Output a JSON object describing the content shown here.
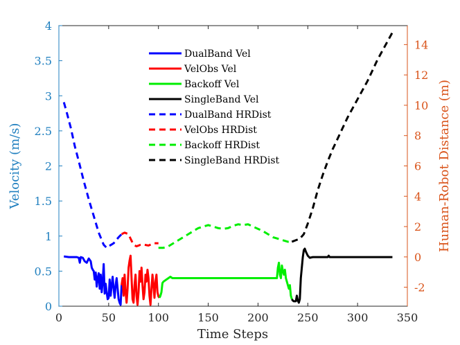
{
  "chart_data": {
    "type": "line",
    "xlabel": "Time Steps",
    "ylabel_left": "Velocity (m/s)",
    "ylabel_right": "Human-Robot Distance (m)",
    "xlim": [
      0,
      350
    ],
    "ylim_left": [
      0,
      4
    ],
    "ylim_right": [
      -3.25,
      15.25
    ],
    "x_ticks": [
      0,
      50,
      100,
      150,
      200,
      250,
      300,
      350
    ],
    "y_left_ticks": [
      0,
      0.5,
      1,
      1.5,
      2,
      2.5,
      3,
      3.5,
      4
    ],
    "y_left_tick_labels": [
      "0",
      "0.5",
      "1",
      "1.5",
      "2",
      "2.5",
      "3",
      "3.5",
      "4"
    ],
    "y_right_ticks": [
      -2,
      0,
      2,
      4,
      6,
      8,
      10,
      12,
      14
    ],
    "y_right_tick_labels": [
      "-2",
      "0",
      "2",
      "4",
      "6",
      "8",
      "10",
      "12",
      "14"
    ],
    "grid": false,
    "legend_position": "top-center",
    "colors": {
      "left_axis": "#1f7fbf",
      "right_axis": "#d95319"
    },
    "series": [
      {
        "name": "DualBand Vel",
        "color": "#0000ff",
        "style": "solid",
        "axis": "left",
        "points": [
          [
            5,
            0.71
          ],
          [
            10,
            0.7
          ],
          [
            15,
            0.7
          ],
          [
            18,
            0.7
          ],
          [
            20,
            0.69
          ],
          [
            21,
            0.62
          ],
          [
            22,
            0.7
          ],
          [
            24,
            0.69
          ],
          [
            26,
            0.64
          ],
          [
            28,
            0.62
          ],
          [
            30,
            0.68
          ],
          [
            32,
            0.64
          ],
          [
            33,
            0.55
          ],
          [
            34,
            0.52
          ],
          [
            35,
            0.5
          ],
          [
            36,
            0.38
          ],
          [
            37,
            0.48
          ],
          [
            38,
            0.28
          ],
          [
            39,
            0.4
          ],
          [
            40,
            0.47
          ],
          [
            41,
            0.25
          ],
          [
            42,
            0.45
          ],
          [
            43,
            0.2
          ],
          [
            44,
            0.35
          ],
          [
            45,
            0.6
          ],
          [
            46,
            0.18
          ],
          [
            47,
            0.32
          ],
          [
            48,
            0.2
          ],
          [
            49,
            0.1
          ],
          [
            50,
            0.12
          ],
          [
            51,
            0.38
          ],
          [
            52,
            0.15
          ],
          [
            53,
            0.3
          ],
          [
            54,
            0.42
          ],
          [
            55,
            0.25
          ],
          [
            56,
            0.12
          ],
          [
            57,
            0.3
          ],
          [
            58,
            0.4
          ],
          [
            59,
            0.25
          ],
          [
            60,
            0.1
          ],
          [
            61,
            0.05
          ],
          [
            62,
            0.02
          ],
          [
            63,
            0.3
          ]
        ]
      },
      {
        "name": "VelObs Vel",
        "color": "#ff0000",
        "style": "solid",
        "axis": "left",
        "points": [
          [
            63,
            0.3
          ],
          [
            64,
            0.4
          ],
          [
            65,
            0.15
          ],
          [
            66,
            0.45
          ],
          [
            67,
            0.2
          ],
          [
            68,
            0.05
          ],
          [
            69,
            0.25
          ],
          [
            70,
            0.55
          ],
          [
            71,
            0.65
          ],
          [
            72,
            0.72
          ],
          [
            73,
            0.4
          ],
          [
            74,
            0.1
          ],
          [
            75,
            0.05
          ],
          [
            76,
            0.3
          ],
          [
            77,
            0.45
          ],
          [
            78,
            0.15
          ],
          [
            79,
            0.02
          ],
          [
            80,
            0.2
          ],
          [
            81,
            0.5
          ],
          [
            82,
            0.35
          ],
          [
            83,
            0.55
          ],
          [
            84,
            0.3
          ],
          [
            85,
            0.1
          ],
          [
            86,
            0.2
          ],
          [
            87,
            0.45
          ],
          [
            88,
            0.35
          ],
          [
            89,
            0.52
          ],
          [
            90,
            0.4
          ],
          [
            91,
            0.15
          ],
          [
            92,
            0.02
          ],
          [
            93,
            0.25
          ],
          [
            94,
            0.45
          ],
          [
            95,
            0.3
          ],
          [
            96,
            0.12
          ],
          [
            97,
            0.35
          ],
          [
            98,
            0.45
          ],
          [
            99,
            0.2
          ],
          [
            100,
            0.14
          ],
          [
            101,
            0.12
          ]
        ]
      },
      {
        "name": "Backoff Vel",
        "color": "#00ee00",
        "style": "solid",
        "axis": "left",
        "points": [
          [
            101,
            0.12
          ],
          [
            102,
            0.15
          ],
          [
            103,
            0.2
          ],
          [
            104,
            0.33
          ],
          [
            105,
            0.35
          ],
          [
            108,
            0.38
          ],
          [
            110,
            0.4
          ],
          [
            112,
            0.42
          ],
          [
            114,
            0.4
          ],
          [
            120,
            0.4
          ],
          [
            140,
            0.4
          ],
          [
            160,
            0.4
          ],
          [
            180,
            0.4
          ],
          [
            200,
            0.4
          ],
          [
            215,
            0.4
          ],
          [
            219,
            0.4
          ],
          [
            220,
            0.55
          ],
          [
            221,
            0.62
          ],
          [
            222,
            0.45
          ],
          [
            223,
            0.4
          ],
          [
            224,
            0.58
          ],
          [
            225,
            0.5
          ],
          [
            226,
            0.45
          ],
          [
            227,
            0.52
          ],
          [
            228,
            0.4
          ],
          [
            229,
            0.35
          ],
          [
            230,
            0.3
          ],
          [
            231,
            0.25
          ],
          [
            232,
            0.3
          ],
          [
            233,
            0.15
          ],
          [
            234,
            0.1
          ]
        ]
      },
      {
        "name": "SingleBand Vel",
        "color": "#000000",
        "style": "solid",
        "axis": "left",
        "points": [
          [
            234,
            0.1
          ],
          [
            235,
            0.08
          ],
          [
            236,
            0.07
          ],
          [
            238,
            0.07
          ],
          [
            239,
            0.15
          ],
          [
            240,
            0.08
          ],
          [
            241,
            0.05
          ],
          [
            242,
            0.1
          ],
          [
            243,
            0.4
          ],
          [
            245,
            0.7
          ],
          [
            246,
            0.8
          ],
          [
            247,
            0.82
          ],
          [
            248,
            0.78
          ],
          [
            250,
            0.72
          ],
          [
            252,
            0.69
          ],
          [
            255,
            0.7
          ],
          [
            260,
            0.7
          ],
          [
            270,
            0.7
          ],
          [
            271,
            0.72
          ],
          [
            272,
            0.7
          ],
          [
            280,
            0.7
          ],
          [
            290,
            0.7
          ],
          [
            300,
            0.7
          ],
          [
            320,
            0.7
          ],
          [
            335,
            0.7
          ]
        ]
      },
      {
        "name": "DualBand HRDist",
        "color": "#0000ff",
        "style": "dashed",
        "axis": "right",
        "points": [
          [
            5,
            10.2
          ],
          [
            8,
            9.5
          ],
          [
            12,
            8.5
          ],
          [
            16,
            7.3
          ],
          [
            20,
            6.3
          ],
          [
            25,
            5.0
          ],
          [
            30,
            3.8
          ],
          [
            35,
            2.7
          ],
          [
            40,
            1.6
          ],
          [
            45,
            0.8
          ],
          [
            48,
            0.6
          ],
          [
            50,
            0.7
          ],
          [
            55,
            0.9
          ],
          [
            60,
            1.3
          ],
          [
            63,
            1.5
          ]
        ]
      },
      {
        "name": "VelObs HRDist",
        "color": "#ff0000",
        "style": "dashed",
        "axis": "right",
        "points": [
          [
            63,
            1.5
          ],
          [
            66,
            1.6
          ],
          [
            70,
            1.5
          ],
          [
            72,
            1.2
          ],
          [
            75,
            0.8
          ],
          [
            78,
            0.7
          ],
          [
            82,
            0.8
          ],
          [
            86,
            0.8
          ],
          [
            90,
            0.75
          ],
          [
            95,
            0.9
          ],
          [
            100,
            0.9
          ]
        ]
      },
      {
        "name": "Backoff HRDist",
        "color": "#00ee00",
        "style": "dashed",
        "axis": "right",
        "points": [
          [
            100,
            0.6
          ],
          [
            105,
            0.6
          ],
          [
            110,
            0.7
          ],
          [
            115,
            0.9
          ],
          [
            120,
            1.1
          ],
          [
            125,
            1.3
          ],
          [
            130,
            1.5
          ],
          [
            135,
            1.7
          ],
          [
            140,
            1.9
          ],
          [
            145,
            2.0
          ],
          [
            150,
            2.1
          ],
          [
            155,
            2.0
          ],
          [
            160,
            1.9
          ],
          [
            165,
            1.85
          ],
          [
            170,
            1.9
          ],
          [
            175,
            2.05
          ],
          [
            180,
            2.15
          ],
          [
            185,
            2.1
          ],
          [
            190,
            2.15
          ],
          [
            195,
            2.0
          ],
          [
            200,
            1.85
          ],
          [
            205,
            1.7
          ],
          [
            210,
            1.5
          ],
          [
            215,
            1.3
          ],
          [
            220,
            1.2
          ],
          [
            225,
            1.1
          ],
          [
            230,
            1.0
          ],
          [
            234,
            1.0
          ]
        ]
      },
      {
        "name": "SingleBand HRDist",
        "color": "#000000",
        "style": "dashed",
        "axis": "right",
        "points": [
          [
            234,
            1.0
          ],
          [
            238,
            1.1
          ],
          [
            242,
            1.2
          ],
          [
            246,
            1.5
          ],
          [
            250,
            2.2
          ],
          [
            255,
            3.2
          ],
          [
            260,
            4.4
          ],
          [
            265,
            5.4
          ],
          [
            270,
            6.3
          ],
          [
            275,
            7.1
          ],
          [
            280,
            7.8
          ],
          [
            285,
            8.5
          ],
          [
            290,
            9.2
          ],
          [
            295,
            9.8
          ],
          [
            300,
            10.4
          ],
          [
            305,
            11.0
          ],
          [
            310,
            11.6
          ],
          [
            315,
            12.3
          ],
          [
            320,
            13.0
          ],
          [
            325,
            13.6
          ],
          [
            330,
            14.2
          ],
          [
            335,
            14.8
          ]
        ]
      }
    ]
  }
}
